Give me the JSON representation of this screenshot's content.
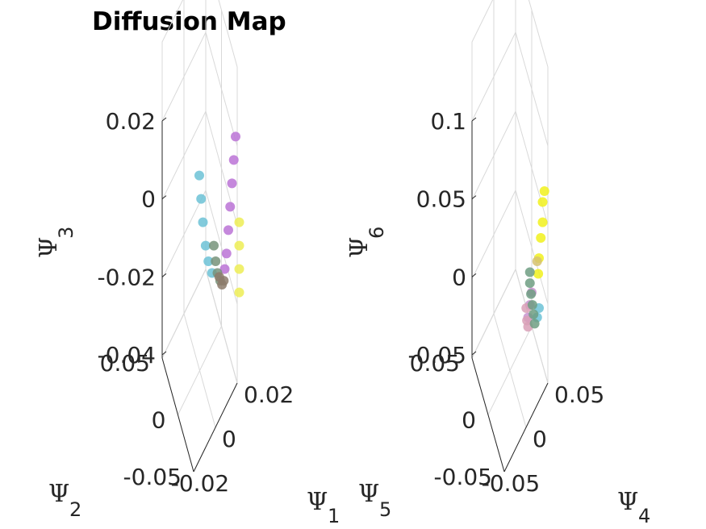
{
  "chart_data": [
    {
      "type": "scatter3d",
      "title": "Diffusion Map",
      "xlabel": "Ψ",
      "xlabel_sub": "1",
      "ylabel": "Ψ",
      "ylabel_sub": "2",
      "zlabel": "Ψ",
      "zlabel_sub": "3",
      "xlim": [
        -0.02,
        0.02
      ],
      "ylim": [
        -0.05,
        0.05
      ],
      "zlim": [
        -0.04,
        0.02
      ],
      "xticks": [
        "-0.02",
        "0",
        "0.02"
      ],
      "yticks": [
        "-0.05",
        "0",
        "0.05"
      ],
      "zticks": [
        "-0.04",
        "-0.02",
        "0",
        "0.02"
      ],
      "grid": true,
      "series": [
        {
          "color": "#bb73d6",
          "points": [
            [
              0.02,
              0.0,
              0.016
            ],
            [
              0.018,
              0.0,
              0.01
            ],
            [
              0.016,
              0.0,
              0.004
            ],
            [
              0.014,
              0.0,
              -0.002
            ],
            [
              0.012,
              0.0,
              -0.008
            ],
            [
              0.01,
              0.0,
              -0.014
            ],
            [
              0.008,
              0.0,
              -0.018
            ]
          ]
        },
        {
          "color": "#6cc2d6",
          "points": [
            [
              -0.02,
              0.0,
              0.006
            ],
            [
              -0.018,
              0.0,
              0.0
            ],
            [
              -0.016,
              0.0,
              -0.006
            ],
            [
              -0.013,
              0.0,
              -0.012
            ],
            [
              -0.01,
              0.0,
              -0.016
            ],
            [
              -0.006,
              0.0,
              -0.019
            ]
          ]
        },
        {
          "color": "#77937a",
          "points": [
            [
              -0.004,
              0.0,
              -0.012
            ],
            [
              -0.002,
              0.0,
              -0.016
            ],
            [
              0.0,
              0.0,
              -0.019
            ],
            [
              0.003,
              0.0,
              -0.021
            ]
          ]
        },
        {
          "color": "#8c7b6b",
          "points": [
            [
              0.002,
              0.0,
              -0.02
            ],
            [
              0.005,
              0.0,
              -0.022
            ],
            [
              0.007,
              0.0,
              -0.021
            ]
          ]
        },
        {
          "color": "#eded55",
          "points": [
            [
              0.024,
              0.0,
              -0.006
            ],
            [
              0.024,
              0.0,
              -0.012
            ],
            [
              0.024,
              0.0,
              -0.018
            ],
            [
              0.024,
              0.0,
              -0.024
            ]
          ]
        }
      ]
    },
    {
      "type": "scatter3d",
      "title": "",
      "xlabel": "Ψ",
      "xlabel_sub": "4",
      "ylabel": "Ψ",
      "ylabel_sub": "5",
      "zlabel": "Ψ",
      "zlabel_sub": "6",
      "xlim": [
        -0.05,
        0.05
      ],
      "ylim": [
        -0.05,
        0.05
      ],
      "zlim": [
        -0.05,
        0.1
      ],
      "xticks": [
        "-0.05",
        "0",
        "0.05"
      ],
      "yticks": [
        "-0.05",
        "0",
        "0.05"
      ],
      "zticks": [
        "-0.05",
        "0",
        "0.05",
        "0.1"
      ],
      "grid": true,
      "series": [
        {
          "color": "#f1f11c",
          "points": [
            [
              0.045,
              0.0,
              0.055
            ],
            [
              0.04,
              0.0,
              0.048
            ],
            [
              0.04,
              0.0,
              0.035
            ],
            [
              0.035,
              0.0,
              0.025
            ],
            [
              0.03,
              0.0,
              0.012
            ],
            [
              0.028,
              0.0,
              0.002
            ]
          ]
        },
        {
          "color": "#d6c270",
          "points": [
            [
              0.025,
              0.0,
              0.01
            ]
          ]
        },
        {
          "color": "#c893cf",
          "points": [
            [
              0.01,
              0.0,
              -0.01
            ],
            [
              0.005,
              0.0,
              -0.018
            ],
            [
              0.0,
              0.0,
              -0.026
            ]
          ]
        },
        {
          "color": "#d9a0b7",
          "points": [
            [
              -0.005,
              0.0,
              -0.02
            ],
            [
              -0.003,
              0.0,
              -0.028
            ],
            [
              0.0,
              0.0,
              -0.032
            ]
          ]
        },
        {
          "color": "#6cc2d6",
          "points": [
            [
              0.03,
              0.0,
              -0.02
            ],
            [
              0.025,
              0.0,
              -0.026
            ]
          ]
        },
        {
          "color": "#6f9e82",
          "points": [
            [
              0.005,
              0.0,
              0.003
            ],
            [
              0.005,
              0.0,
              -0.004
            ],
            [
              0.008,
              0.0,
              -0.011
            ],
            [
              0.012,
              0.0,
              -0.018
            ],
            [
              0.015,
              0.0,
              -0.024
            ],
            [
              0.018,
              0.0,
              -0.03
            ]
          ]
        }
      ]
    }
  ]
}
